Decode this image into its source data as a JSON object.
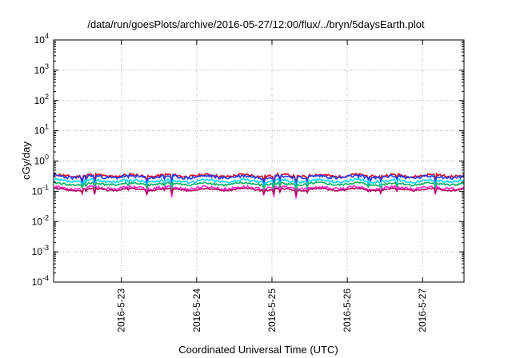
{
  "chart_data": {
    "type": "line",
    "title": "/data/run/goesPlots/archive/2016-05-27/12:00/flux/../bryn/5daysEarth.plot",
    "xlabel": "Coordinated Universal Time (UTC)",
    "ylabel": "cGy/day",
    "yscale": "log",
    "ylim": [
      0.0001,
      10000
    ],
    "xlim_days": [
      22.1,
      27.55
    ],
    "grid": true,
    "y_ticks": [
      {
        "value": 0.0001,
        "mantissa": "10",
        "exp": "-4"
      },
      {
        "value": 0.001,
        "mantissa": "10",
        "exp": "-3"
      },
      {
        "value": 0.01,
        "mantissa": "10",
        "exp": "-2"
      },
      {
        "value": 0.1,
        "mantissa": "10",
        "exp": "-1"
      },
      {
        "value": 1,
        "mantissa": "10",
        "exp": "0"
      },
      {
        "value": 10,
        "mantissa": "10",
        "exp": "1"
      },
      {
        "value": 100,
        "mantissa": "10",
        "exp": "2"
      },
      {
        "value": 1000,
        "mantissa": "10",
        "exp": "3"
      },
      {
        "value": 10000,
        "mantissa": "10",
        "exp": "4"
      }
    ],
    "x_ticks": [
      {
        "day": 23,
        "label": "2016-5-23"
      },
      {
        "day": 24,
        "label": "2016-5-24"
      },
      {
        "day": 25,
        "label": "2016-5-25"
      },
      {
        "day": 26,
        "label": "2016-5-26"
      },
      {
        "day": 27,
        "label": "2016-5-27"
      }
    ],
    "series": [
      {
        "color": "#e0001a",
        "base": 0.33,
        "dip": 0.45,
        "noise": 0.1,
        "seed": 11
      },
      {
        "color": "#1f3cf0",
        "base": 0.3,
        "dip": 0.55,
        "noise": 0.12,
        "seed": 23
      },
      {
        "color": "#00d8ff",
        "base": 0.22,
        "dip": 0.55,
        "noise": 0.1,
        "seed": 37
      },
      {
        "color": "#00b060",
        "base": 0.175,
        "dip": 0.5,
        "noise": 0.08,
        "seed": 41
      },
      {
        "color": "#ff2ad4",
        "base": 0.13,
        "dip": 0.6,
        "noise": 0.1,
        "seed": 53
      },
      {
        "color": "#b0005a",
        "base": 0.115,
        "dip": 0.4,
        "noise": 0.05,
        "seed": 67
      }
    ]
  }
}
